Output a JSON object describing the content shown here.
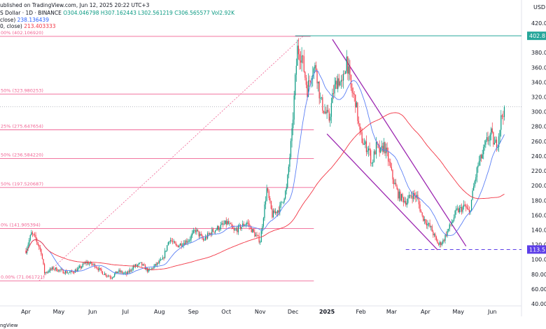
{
  "header": {
    "published": "ublished on TradingView.com, Jun 12, 2025 20:22 UTC+3",
    "symbol": "S Dollar · 1D · BINANCE",
    "o": "O304.046798",
    "h": "H307.162443",
    "l": "L302.561219",
    "c": "C306.565577",
    "vol": "Vol2.92K",
    "ma1_label": "close)",
    "ma1_value": "238.136439",
    "ma2_label": "0, close)",
    "ma2_value": "213.403333"
  },
  "footer": {
    "brand": "ngView"
  },
  "colors": {
    "up": "#089981",
    "down": "#f23645",
    "fib": "#f06292",
    "ma_fast": "#5b7ff5",
    "ma_slow": "#f23645",
    "channel": "#9c27b0",
    "support": "#5c3ee8",
    "high_line": "#26a69a"
  },
  "chart_data": {
    "type": "candlestick",
    "price_axis_label": "USD",
    "y_ticks": [
      "420.00",
      "400.00",
      "380.00",
      "360.00",
      "340.00",
      "320.00",
      "300.00",
      "280.00",
      "260.00",
      "240.00",
      "220.00",
      "200.00",
      "180.00",
      "160.00",
      "140.00",
      "120.00",
      "100.00",
      "80.00",
      "60.00",
      "40.00"
    ],
    "x_ticks": [
      {
        "label": "Apr",
        "day": 0
      },
      {
        "label": "May",
        "day": 30
      },
      {
        "label": "Jun",
        "day": 61
      },
      {
        "label": "Jul",
        "day": 91
      },
      {
        "label": "Aug",
        "day": 122
      },
      {
        "label": "Sep",
        "day": 153
      },
      {
        "label": "Oct",
        "day": 183
      },
      {
        "label": "Nov",
        "day": 214
      },
      {
        "label": "Dec",
        "day": 244
      },
      {
        "label": "2025",
        "day": 275
      },
      {
        "label": "Feb",
        "day": 306
      },
      {
        "label": "Mar",
        "day": 334
      },
      {
        "label": "Apr",
        "day": 365
      },
      {
        "label": "May",
        "day": 395
      },
      {
        "label": "Jun",
        "day": 426
      }
    ],
    "fib_levels": [
      {
        "label": "00% (402.106920)",
        "value": 402.1
      },
      {
        "label": "50% (323.980253)",
        "value": 324.0
      },
      {
        "label": "25% (275.647654)",
        "value": 275.6
      },
      {
        "label": "50% (236.584220)",
        "value": 236.6
      },
      {
        "label": "50% (197.520687)",
        "value": 197.5
      },
      {
        "label": "0% (141.905394)",
        "value": 141.9
      },
      {
        "label": "0.00% (71.061721)",
        "value": 71.1
      }
    ],
    "price_labels": [
      {
        "label": "402.8",
        "value": 402.8
      },
      {
        "label": "113.5",
        "value": 113.5
      }
    ],
    "last_price": 306.6,
    "anchors": [
      [
        0,
        112
      ],
      [
        5,
        135
      ],
      [
        9,
        128
      ],
      [
        14,
        110
      ],
      [
        17,
        82
      ],
      [
        25,
        88
      ],
      [
        33,
        84
      ],
      [
        40,
        82
      ],
      [
        47,
        86
      ],
      [
        55,
        96
      ],
      [
        63,
        92
      ],
      [
        70,
        82
      ],
      [
        78,
        76
      ],
      [
        84,
        84
      ],
      [
        92,
        80
      ],
      [
        98,
        90
      ],
      [
        105,
        94
      ],
      [
        112,
        84
      ],
      [
        119,
        93
      ],
      [
        125,
        100
      ],
      [
        131,
        128
      ],
      [
        137,
        118
      ],
      [
        143,
        122
      ],
      [
        149,
        127
      ],
      [
        155,
        140
      ],
      [
        162,
        126
      ],
      [
        170,
        138
      ],
      [
        177,
        144
      ],
      [
        184,
        150
      ],
      [
        190,
        138
      ],
      [
        196,
        144
      ],
      [
        202,
        150
      ],
      [
        208,
        136
      ],
      [
        214,
        125
      ],
      [
        220,
        195
      ],
      [
        225,
        160
      ],
      [
        232,
        170
      ],
      [
        238,
        195
      ],
      [
        243,
        270
      ],
      [
        246,
        342
      ],
      [
        248,
        385
      ],
      [
        252,
        375
      ],
      [
        257,
        330
      ],
      [
        261,
        355
      ],
      [
        265,
        360
      ],
      [
        269,
        315
      ],
      [
        273,
        300
      ],
      [
        277,
        290
      ],
      [
        281,
        328
      ],
      [
        285,
        345
      ],
      [
        289,
        335
      ],
      [
        293,
        373
      ],
      [
        297,
        330
      ],
      [
        301,
        315
      ],
      [
        305,
        270
      ],
      [
        309,
        255
      ],
      [
        313,
        250
      ],
      [
        316,
        230
      ],
      [
        320,
        253
      ],
      [
        324,
        245
      ],
      [
        327,
        255
      ],
      [
        331,
        235
      ],
      [
        335,
        210
      ],
      [
        340,
        188
      ],
      [
        344,
        182
      ],
      [
        348,
        178
      ],
      [
        352,
        188
      ],
      [
        357,
        185
      ],
      [
        362,
        158
      ],
      [
        366,
        150
      ],
      [
        370,
        142
      ],
      [
        374,
        128
      ],
      [
        377,
        120
      ],
      [
        381,
        125
      ],
      [
        385,
        138
      ],
      [
        389,
        150
      ],
      [
        393,
        165
      ],
      [
        397,
        168
      ],
      [
        401,
        172
      ],
      [
        405,
        162
      ],
      [
        409,
        198
      ],
      [
        413,
        228
      ],
      [
        417,
        242
      ],
      [
        421,
        260
      ],
      [
        425,
        270
      ],
      [
        428,
        255
      ],
      [
        431,
        260
      ],
      [
        434,
        290
      ],
      [
        437,
        306.6
      ]
    ]
  }
}
